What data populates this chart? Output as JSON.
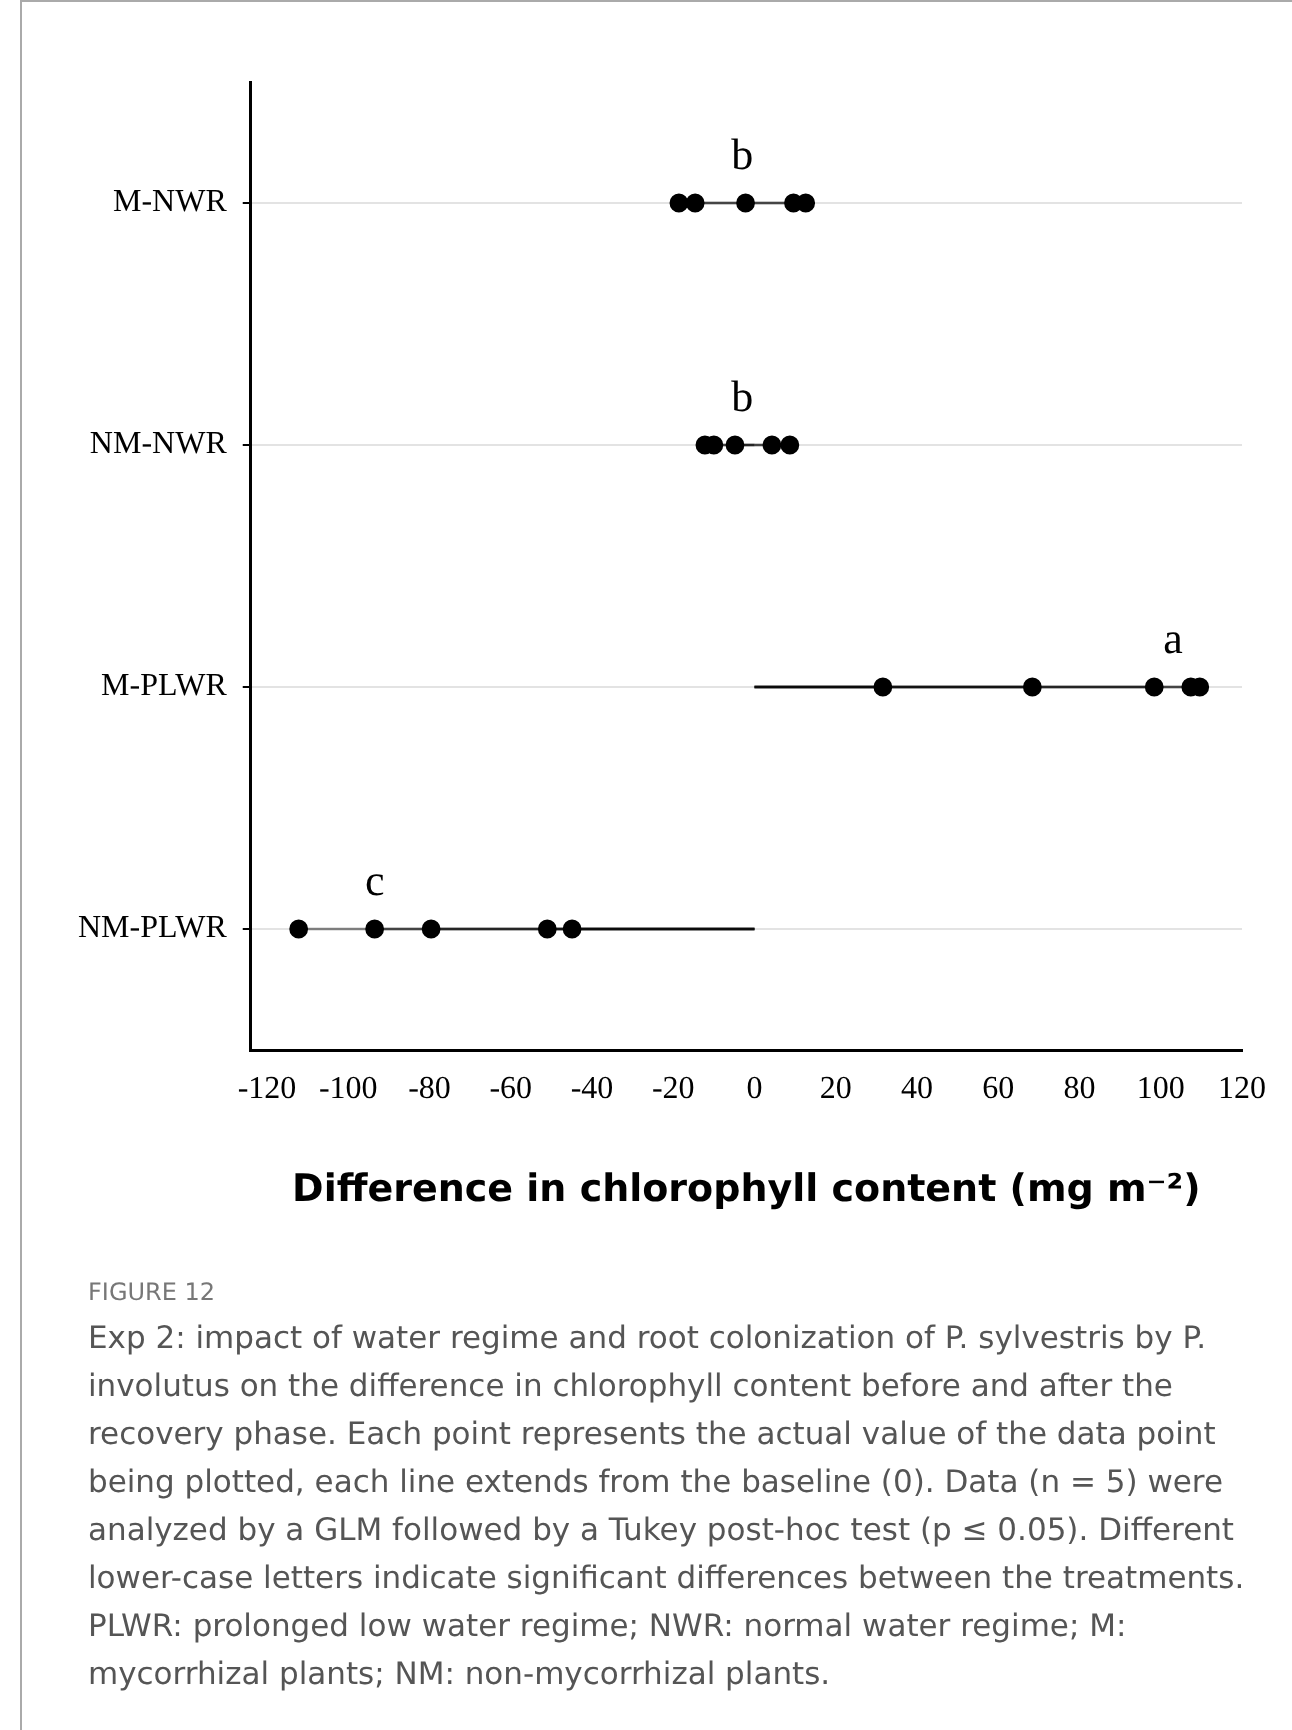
{
  "chart_data": {
    "type": "lollipop",
    "orientation": "horizontal",
    "categories": [
      "M-NWR",
      "NM-NWR",
      "M-PLWR",
      "NM-PLWR"
    ],
    "series": [
      {
        "color": "#000000",
        "values": [
          -18.6,
          -12.2,
          31.6,
          -112.2
        ]
      },
      {
        "color": "#000000",
        "values": [
          -14.6,
          -10,
          68.4,
          -93.5
        ]
      },
      {
        "color": "#000000",
        "values": [
          -2.2,
          -4.8,
          98.4,
          -79.6
        ]
      },
      {
        "color": "#000000",
        "values": [
          9.6,
          4.3,
          107.4,
          -51
        ]
      },
      {
        "color": "#000000",
        "values": [
          12.6,
          8.7,
          109.6,
          -44.9
        ]
      }
    ],
    "xlim": [
      -124,
      120
    ],
    "xticks": [
      -120,
      -100,
      -80,
      -60,
      -40,
      -20,
      0,
      20,
      40,
      60,
      80,
      100,
      120
    ],
    "xlabel": "Difference in chlorophyll content (mg m⁻²)",
    "grid": "y",
    "marker": "circle",
    "annotations": [
      {
        "text": "b",
        "x": -3,
        "y": "M-NWR"
      },
      {
        "text": "b",
        "x": -3,
        "y": "NM-NWR"
      },
      {
        "text": "a",
        "x": 103,
        "y": "M-PLWR"
      },
      {
        "text": "c",
        "x": -93.5,
        "y": "NM-PLWR"
      },
      "FIGURE 12",
      "Exp 2: impact of water regime and root colonization of P. sylvestris by P. involutus on the difference in chlorophyll content before and after the recovery phase. Each point represents the actual value of the data point being plotted, each line extends from the baseline (0). Data (n = 5) were analyzed by a GLM followed by a Tukey post-hoc test (p ≤ 0.05). Different lower-case letters indicate significant differences between the treatments. PLWR: prolonged low water regime; NWR: normal water regime; M: mycorrhizal plants; NM: non-mycorrhizal plants."
    ]
  }
}
